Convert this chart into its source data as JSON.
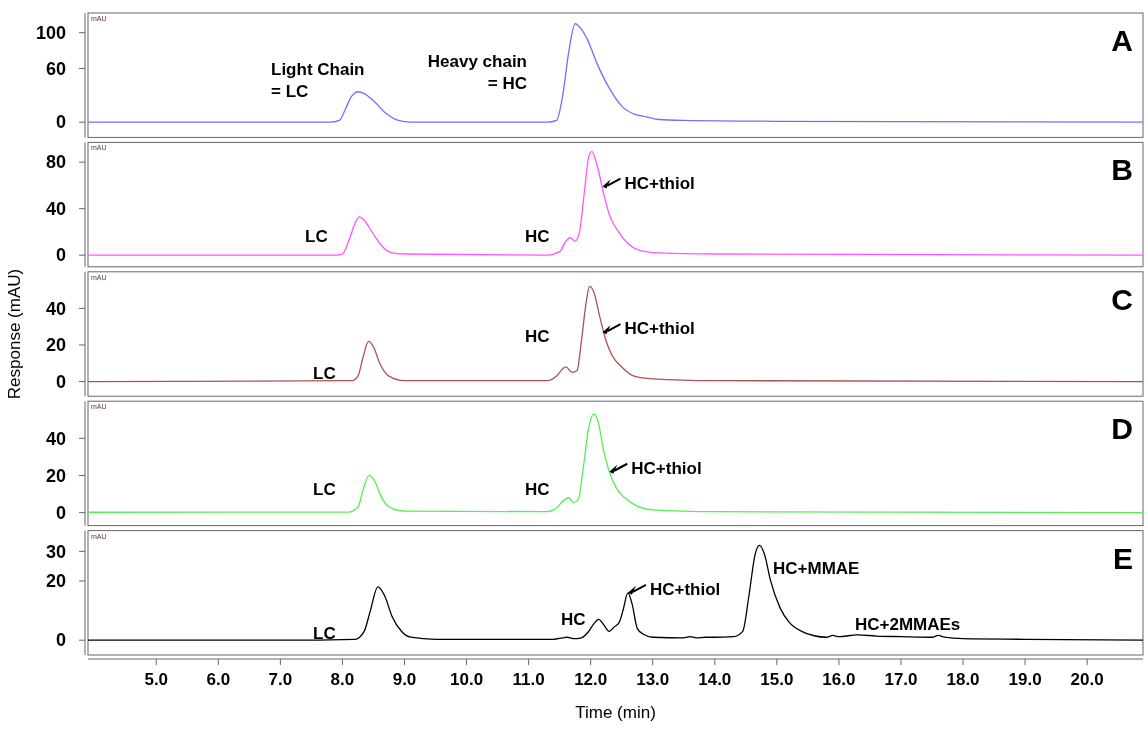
{
  "chart_data": [
    {
      "type": "line",
      "title": "A",
      "color": "#7070ff",
      "xlim": [
        3.9,
        20.9
      ],
      "ylim": [
        -17,
        122
      ],
      "yticks": [
        0,
        60,
        100
      ],
      "tick_labels": "y",
      "x": [
        3.9,
        5,
        7,
        7.8,
        7.95,
        8.05,
        8.15,
        8.25,
        8.35,
        8.5,
        8.7,
        8.9,
        9.1,
        10,
        11.3,
        11.45,
        11.55,
        11.65,
        11.75,
        11.85,
        11.95,
        12.1,
        12.3,
        12.5,
        12.7,
        12.9,
        13.1,
        13.5,
        15,
        20.9
      ],
      "values": [
        0,
        0,
        0,
        0,
        2,
        15,
        29,
        34,
        32,
        24,
        10,
        2,
        0,
        0,
        0,
        2,
        30,
        80,
        110,
        104,
        92,
        66,
        38,
        18,
        9,
        6,
        3,
        2,
        1,
        0
      ],
      "annotations": [
        "mAU",
        "Light Chain\n= LC",
        "Heavy chain\n= HC"
      ]
    },
    {
      "type": "line",
      "title": "B",
      "color": "#ff55ff",
      "xlim": [
        3.9,
        20.9
      ],
      "ylim": [
        -10,
        97
      ],
      "yticks": [
        0,
        40,
        80
      ],
      "tick_labels": "y",
      "x": [
        3.9,
        7.9,
        8.0,
        8.1,
        8.2,
        8.27,
        8.35,
        8.5,
        8.65,
        8.8,
        9.0,
        11.3,
        11.5,
        11.6,
        11.67,
        11.75,
        11.82,
        11.9,
        11.97,
        12.02,
        12.1,
        12.2,
        12.3,
        12.45,
        12.6,
        12.8,
        13.1,
        14,
        20.9
      ],
      "values": [
        0,
        0,
        1,
        12,
        27,
        33,
        30,
        18,
        7,
        2,
        1,
        0,
        3,
        12,
        15,
        12,
        20,
        55,
        85,
        89,
        78,
        55,
        35,
        20,
        10,
        4,
        2,
        1,
        0
      ],
      "annotations": [
        "mAU",
        "LC",
        "HC",
        {
          "text": "HC+thiol",
          "x": 12.19,
          "y": 59
        }
      ]
    },
    {
      "type": "line",
      "title": "C",
      "ylabel": "Response (mAU)",
      "color": "#b05050",
      "xlim": [
        3.9,
        20.9
      ],
      "ylim": [
        -8,
        60
      ],
      "yticks": [
        0,
        20,
        40
      ],
      "tick_labels": "y",
      "x": [
        3.9,
        8.15,
        8.25,
        8.33,
        8.42,
        8.5,
        8.6,
        8.75,
        9.0,
        11.3,
        11.45,
        11.55,
        11.6,
        11.7,
        11.78,
        11.85,
        11.93,
        11.98,
        12.05,
        12.15,
        12.25,
        12.35,
        12.5,
        12.7,
        13,
        14,
        20.9
      ],
      "values": [
        0,
        0.5,
        3,
        13,
        22,
        19,
        10,
        3,
        0.5,
        0.5,
        3,
        7,
        8,
        5,
        6,
        22,
        44,
        52,
        49,
        35,
        22,
        14,
        8,
        3,
        1.5,
        0.5,
        0
      ],
      "annotations": [
        "mAU",
        "LC",
        "HC",
        {
          "text": "HC+thiol",
          "x": 12.19,
          "y": 27
        }
      ]
    },
    {
      "type": "line",
      "title": "D",
      "color": "#55ee55",
      "xlim": [
        3.9,
        20.9
      ],
      "ylim": [
        -7,
        60
      ],
      "yticks": [
        0,
        20,
        40
      ],
      "tick_labels": "y",
      "x": [
        3.9,
        8.1,
        8.25,
        8.33,
        8.43,
        8.52,
        8.62,
        8.75,
        9,
        11.3,
        11.45,
        11.58,
        11.65,
        11.72,
        11.8,
        11.88,
        11.97,
        12.05,
        12.12,
        12.2,
        12.3,
        12.4,
        12.55,
        12.75,
        13,
        14,
        20.9
      ],
      "values": [
        0.2,
        0.3,
        3,
        12,
        20,
        17,
        9,
        3,
        0.8,
        0.5,
        2.5,
        7,
        8,
        5.5,
        7,
        24,
        46,
        53,
        49,
        35,
        22,
        14,
        8,
        3.5,
        1.5,
        0.5,
        0
      ],
      "annotations": [
        "mAU",
        "LC",
        "HC",
        {
          "text": "HC+thiol",
          "x": 12.3,
          "y": 22
        }
      ]
    },
    {
      "type": "line",
      "title": "E",
      "xlabel": "Time (min)",
      "color": "#000000",
      "xlim": [
        3.9,
        20.9
      ],
      "ylim": [
        -5,
        37
      ],
      "yticks": [
        0,
        20,
        30
      ],
      "xticks": [
        {
          "value": 5,
          "label": "5.0"
        },
        {
          "value": 6,
          "label": "6.0"
        },
        {
          "value": 7,
          "label": "7.0"
        },
        {
          "value": 8,
          "label": "8.0"
        },
        {
          "value": 9,
          "label": "9.0"
        },
        {
          "value": 10,
          "label": "10.0"
        },
        {
          "value": 11,
          "label": "11.0"
        },
        {
          "value": 12,
          "label": "12.0"
        },
        {
          "value": 13,
          "label": "13.0"
        },
        {
          "value": 14,
          "label": "14.0"
        },
        {
          "value": 15,
          "label": "15.0"
        },
        {
          "value": 16,
          "label": "16.0"
        },
        {
          "value": 17,
          "label": "17.0"
        },
        {
          "value": 18,
          "label": "18.0"
        },
        {
          "value": 19,
          "label": "19.0"
        },
        {
          "value": 20,
          "label": "20.0"
        }
      ],
      "x": [
        3.9,
        7,
        8.2,
        8.35,
        8.45,
        8.57,
        8.68,
        8.8,
        8.95,
        9.1,
        9.5,
        11.4,
        11.55,
        11.62,
        11.72,
        11.85,
        11.95,
        12.05,
        12.13,
        12.2,
        12.3,
        12.38,
        12.46,
        12.52,
        12.6,
        12.67,
        12.75,
        12.85,
        13,
        13.5,
        13.6,
        13.7,
        13.85,
        14.0,
        14.3,
        14.45,
        14.55,
        14.65,
        14.72,
        14.8,
        14.9,
        15.05,
        15.2,
        15.4,
        15.6,
        15.8,
        15.9,
        16.0,
        16.3,
        16.6,
        17.0,
        17.5,
        17.6,
        17.7,
        18,
        19,
        20.9
      ],
      "values": [
        0,
        0,
        0.3,
        3,
        10,
        18,
        15,
        8,
        3,
        1,
        0.3,
        0.3,
        0.8,
        1,
        0.5,
        0.8,
        2.5,
        5.5,
        7,
        5.5,
        3,
        4.5,
        6,
        10,
        16,
        12,
        4,
        2,
        1,
        0.8,
        1.2,
        0.8,
        1,
        1,
        1.2,
        3,
        15,
        29,
        32,
        29,
        20,
        11,
        6,
        3,
        1.5,
        1,
        1.6,
        1.2,
        1.8,
        1.4,
        1.2,
        1,
        1.6,
        1,
        0.5,
        0.3,
        0
      ],
      "annotations": [
        "mAU",
        "LC",
        "HC",
        {
          "text": "HC+thiol",
          "x": 12.6,
          "y": 16
        },
        "HC+MMAE",
        "HC+2MMAEs"
      ]
    }
  ]
}
